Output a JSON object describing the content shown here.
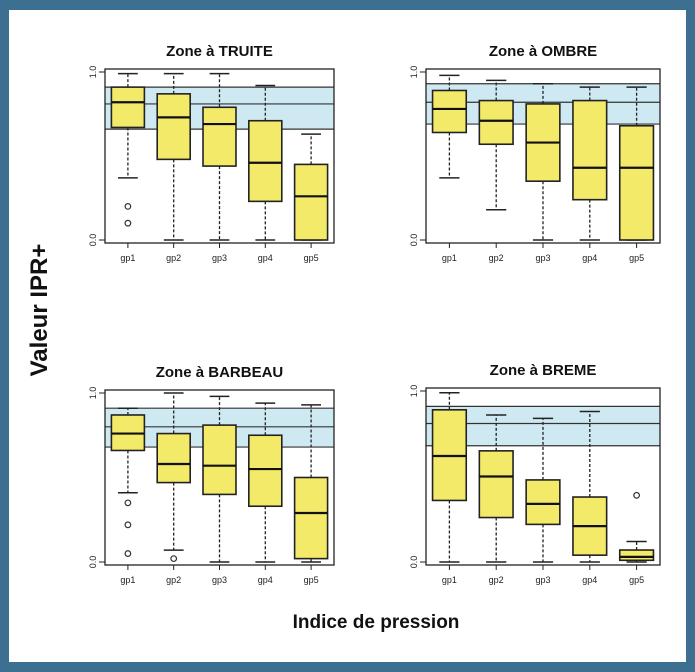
{
  "figure": {
    "ylabel": "Valeur IPR+",
    "xlabel": "Indice de pression",
    "colors": {
      "frame": "#3d6f91",
      "background": "#ffffff",
      "box_fill": "#f4ea6a",
      "reference_band": "#cfe9f3",
      "lines": "#222222"
    }
  },
  "chart_data": [
    {
      "type": "boxplot",
      "title": "Zone à TRUITE",
      "categories": [
        "gp1",
        "gp2",
        "gp3",
        "gp4",
        "gp5"
      ],
      "ylim": [
        0,
        1
      ],
      "yticks": [
        "0.0",
        "1.0"
      ],
      "reference_band": [
        0.66,
        0.91
      ],
      "reference_line": 0.81,
      "boxes": [
        {
          "whisker_low": 0.37,
          "q1": 0.67,
          "median": 0.82,
          "q3": 0.91,
          "whisker_high": 0.99,
          "outliers": [
            0.2,
            0.1
          ]
        },
        {
          "whisker_low": 0.0,
          "q1": 0.48,
          "median": 0.73,
          "q3": 0.87,
          "whisker_high": 0.99,
          "outliers": []
        },
        {
          "whisker_low": 0.0,
          "q1": 0.44,
          "median": 0.69,
          "q3": 0.79,
          "whisker_high": 0.99,
          "outliers": []
        },
        {
          "whisker_low": 0.0,
          "q1": 0.23,
          "median": 0.46,
          "q3": 0.71,
          "whisker_high": 0.92,
          "outliers": []
        },
        {
          "whisker_low": 0.0,
          "q1": 0.0,
          "median": 0.26,
          "q3": 0.45,
          "whisker_high": 0.63,
          "outliers": []
        }
      ]
    },
    {
      "type": "boxplot",
      "title": "Zone à OMBRE",
      "categories": [
        "gp1",
        "gp2",
        "gp3",
        "gp4",
        "gp5"
      ],
      "ylim": [
        0,
        1
      ],
      "yticks": [
        "0.0",
        "1.0"
      ],
      "reference_band": [
        0.69,
        0.93
      ],
      "reference_line": 0.82,
      "boxes": [
        {
          "whisker_low": 0.37,
          "q1": 0.64,
          "median": 0.78,
          "q3": 0.89,
          "whisker_high": 0.98,
          "outliers": []
        },
        {
          "whisker_low": 0.18,
          "q1": 0.57,
          "median": 0.71,
          "q3": 0.83,
          "whisker_high": 0.95,
          "outliers": []
        },
        {
          "whisker_low": 0.0,
          "q1": 0.35,
          "median": 0.58,
          "q3": 0.81,
          "whisker_high": 0.93,
          "outliers": []
        },
        {
          "whisker_low": 0.0,
          "q1": 0.24,
          "median": 0.43,
          "q3": 0.83,
          "whisker_high": 0.91,
          "outliers": []
        },
        {
          "whisker_low": 0.0,
          "q1": 0.0,
          "median": 0.43,
          "q3": 0.68,
          "whisker_high": 0.91,
          "outliers": []
        }
      ]
    },
    {
      "type": "boxplot",
      "title": "Zone à BARBEAU",
      "categories": [
        "gp1",
        "gp2",
        "gp3",
        "gp4",
        "gp5"
      ],
      "ylim": [
        0,
        1
      ],
      "yticks": [
        "0.0",
        "1.0"
      ],
      "reference_band": [
        0.68,
        0.91
      ],
      "reference_line": 0.8,
      "boxes": [
        {
          "whisker_low": 0.41,
          "q1": 0.66,
          "median": 0.76,
          "q3": 0.87,
          "whisker_high": 0.91,
          "outliers": [
            0.35,
            0.22,
            0.05
          ]
        },
        {
          "whisker_low": 0.07,
          "q1": 0.47,
          "median": 0.58,
          "q3": 0.76,
          "whisker_high": 1.0,
          "outliers": [
            0.02
          ]
        },
        {
          "whisker_low": 0.0,
          "q1": 0.4,
          "median": 0.57,
          "q3": 0.81,
          "whisker_high": 0.98,
          "outliers": []
        },
        {
          "whisker_low": 0.0,
          "q1": 0.33,
          "median": 0.55,
          "q3": 0.75,
          "whisker_high": 0.94,
          "outliers": []
        },
        {
          "whisker_low": 0.0,
          "q1": 0.02,
          "median": 0.29,
          "q3": 0.5,
          "whisker_high": 0.93,
          "outliers": []
        }
      ]
    },
    {
      "type": "boxplot",
      "title": "Zone à BREME",
      "categories": [
        "gp1",
        "gp2",
        "gp3",
        "gp4",
        "gp5"
      ],
      "ylim": [
        0,
        1
      ],
      "yticks": [
        "0.0",
        "1.0"
      ],
      "reference_band": [
        0.68,
        0.91
      ],
      "reference_line": 0.81,
      "boxes": [
        {
          "whisker_low": 0.0,
          "q1": 0.36,
          "median": 0.62,
          "q3": 0.89,
          "whisker_high": 0.99,
          "outliers": []
        },
        {
          "whisker_low": 0.0,
          "q1": 0.26,
          "median": 0.5,
          "q3": 0.65,
          "whisker_high": 0.86,
          "outliers": []
        },
        {
          "whisker_low": 0.0,
          "q1": 0.22,
          "median": 0.34,
          "q3": 0.48,
          "whisker_high": 0.84,
          "outliers": []
        },
        {
          "whisker_low": 0.0,
          "q1": 0.04,
          "median": 0.21,
          "q3": 0.38,
          "whisker_high": 0.88,
          "outliers": []
        },
        {
          "whisker_low": 0.0,
          "q1": 0.01,
          "median": 0.03,
          "q3": 0.07,
          "whisker_high": 0.12,
          "outliers": [
            0.39
          ]
        }
      ]
    }
  ]
}
